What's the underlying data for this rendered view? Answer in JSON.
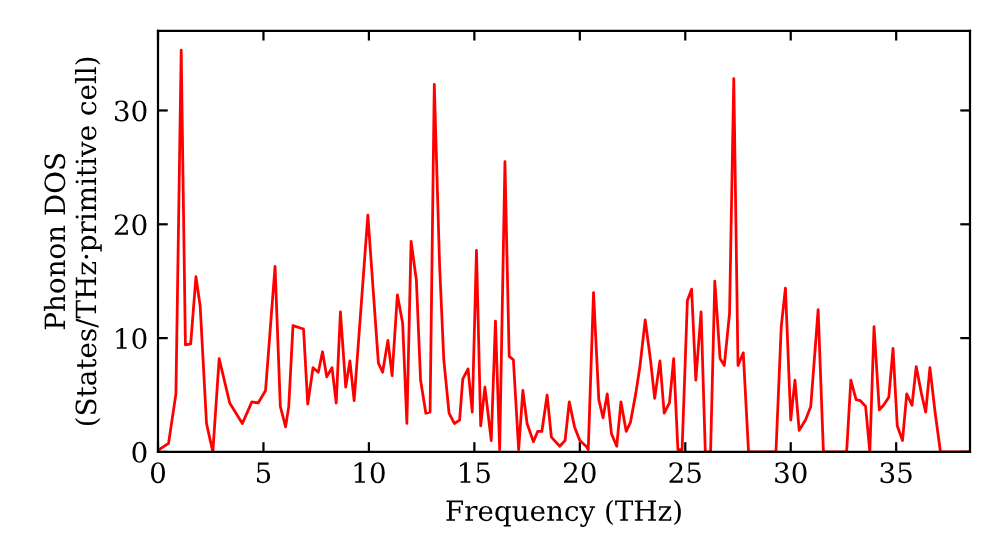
{
  "chart_data": {
    "type": "line",
    "xlabel": "Frequency (THz)",
    "ylabel": "Phonon DOS\n(States/THz·primitive cell)",
    "xlim": [
      0,
      38.5
    ],
    "ylim": [
      0,
      37
    ],
    "xticks": [
      0,
      5,
      10,
      15,
      20,
      25,
      30,
      35
    ],
    "yticks": [
      0,
      10,
      20,
      30
    ],
    "grid": false,
    "legend": false,
    "marker": "none",
    "line_style": "solid",
    "series": [
      {
        "color": "#ff0000",
        "x": [
          0.05,
          0.5,
          0.85,
          1.1,
          1.3,
          1.55,
          1.8,
          2.0,
          2.3,
          2.6,
          2.9,
          3.4,
          3.7,
          4.0,
          4.45,
          4.75,
          5.1,
          5.55,
          5.8,
          6.05,
          6.2,
          6.4,
          6.9,
          7.1,
          7.35,
          7.6,
          7.8,
          8.0,
          8.25,
          8.45,
          8.65,
          8.9,
          9.1,
          9.3,
          9.95,
          10.45,
          10.65,
          10.9,
          11.1,
          11.35,
          11.6,
          11.8,
          12.0,
          12.25,
          12.45,
          12.7,
          12.9,
          13.1,
          13.35,
          13.55,
          13.8,
          14.05,
          14.3,
          14.45,
          14.7,
          14.9,
          15.1,
          15.3,
          15.5,
          15.8,
          16.0,
          16.2,
          16.45,
          16.65,
          16.85,
          17.1,
          17.3,
          17.5,
          17.8,
          18.0,
          18.2,
          18.45,
          18.65,
          19.05,
          19.3,
          19.5,
          19.75,
          20.0,
          20.3,
          20.4,
          20.65,
          20.9,
          21.1,
          21.3,
          21.5,
          21.75,
          21.95,
          22.2,
          22.4,
          22.65,
          22.85,
          23.1,
          23.35,
          23.55,
          23.8,
          24.0,
          24.25,
          24.45,
          24.65,
          24.85,
          25.1,
          25.3,
          25.5,
          25.75,
          25.95,
          26.2,
          26.4,
          26.65,
          26.85,
          27.1,
          27.3,
          27.5,
          27.75,
          28.0,
          29.3,
          29.55,
          29.75,
          30.0,
          30.2,
          30.4,
          30.7,
          30.95,
          31.3,
          31.55,
          32.65,
          32.85,
          33.1,
          33.3,
          33.55,
          33.75,
          33.95,
          34.2,
          34.4,
          34.65,
          34.85,
          35.05,
          35.3,
          35.5,
          35.75,
          35.95,
          36.2,
          36.4,
          36.6,
          36.85,
          37.1,
          38.5
        ],
        "values": [
          0.2,
          0.75,
          5.1,
          35.3,
          9.4,
          9.5,
          15.4,
          12.8,
          2.5,
          0,
          8.2,
          4.3,
          3.4,
          2.5,
          4.4,
          4.3,
          5.4,
          16.3,
          4.0,
          2.2,
          4.0,
          11.1,
          10.8,
          4.2,
          7.4,
          7.0,
          8.8,
          6.6,
          7.4,
          4.3,
          12.3,
          5.7,
          8.0,
          4.5,
          20.8,
          7.8,
          7.0,
          9.8,
          6.7,
          13.8,
          11.3,
          2.5,
          18.5,
          15.1,
          6.3,
          3.4,
          3.5,
          32.3,
          16.5,
          8.1,
          3.4,
          2.5,
          2.8,
          6.4,
          7.3,
          3.5,
          17.7,
          2.3,
          5.7,
          1.0,
          11.5,
          0.2,
          25.5,
          8.4,
          8.1,
          0.2,
          5.4,
          2.5,
          0.9,
          1.8,
          1.8,
          5.0,
          1.3,
          0.5,
          1.0,
          4.4,
          2.2,
          1.0,
          0.5,
          0.2,
          14.0,
          4.6,
          3.0,
          5.1,
          1.6,
          0.5,
          4.4,
          1.8,
          2.6,
          5.1,
          7.5,
          11.6,
          8.1,
          4.7,
          8.0,
          3.4,
          4.3,
          8.2,
          0.2,
          0.2,
          13.3,
          14.3,
          6.3,
          12.3,
          0,
          0,
          15.0,
          8.2,
          7.6,
          12.2,
          32.8,
          7.6,
          8.7,
          0,
          0,
          11.0,
          14.4,
          2.8,
          6.3,
          1.9,
          2.8,
          4.0,
          12.5,
          0,
          0,
          6.3,
          4.6,
          4.5,
          4.0,
          0,
          11.0,
          3.7,
          4.1,
          4.8,
          9.1,
          2.3,
          1.0,
          5.1,
          4.1,
          7.5,
          5.1,
          3.5,
          7.4,
          3.4,
          0,
          0
        ]
      }
    ]
  }
}
